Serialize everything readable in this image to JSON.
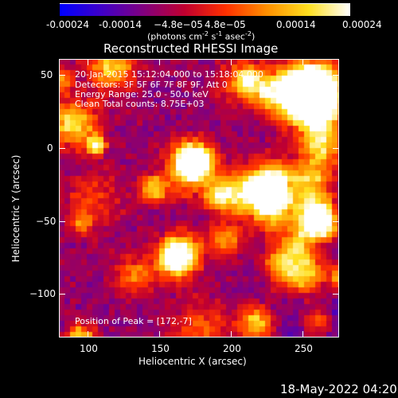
{
  "colorbar": {
    "ticks": [
      "-0.00024",
      "-0.00014",
      "−4.8e−05",
      "4.8e−05",
      "0.00014",
      "0.00024"
    ],
    "unit_prefix": "(photons cm",
    "unit_sup1": "-2",
    "unit_mid1": " s",
    "unit_sup2": "-1",
    "unit_mid2": " asec",
    "unit_sup3": "-2",
    "unit_suffix": ")",
    "colors": [
      "#0000ff",
      "#4000c8",
      "#800080",
      "#c00030",
      "#ff3000",
      "#ff9000",
      "#ffe020",
      "#ffffff"
    ]
  },
  "plot": {
    "title": "Reconstructed RHESSI Image",
    "info_lines": [
      "20-Jan-2015 15:12:04.000 to 15:18:04.000",
      "Detectors: 3F 5F 6F 7F 8F 9F, Att 0",
      "Energy Range: 25.0 - 50.0 keV",
      "Clean   Total counts: 8.75E+03"
    ],
    "peak_text": "Position of Peak = [172,-7]",
    "xlabel": "Heliocentric X (arcsec)",
    "ylabel": "Heliocentric Y (arcsec)",
    "xticks": [
      "100",
      "150",
      "200",
      "250"
    ],
    "yticks": [
      "50",
      "0",
      "−50",
      "−100"
    ],
    "x_range": [
      80,
      275
    ],
    "y_range": [
      -130,
      65
    ],
    "peak_position": [
      172,
      -7
    ],
    "colormap": "red-temperature with blue negatives"
  },
  "footer": {
    "date": "18-May-2022 04:20"
  }
}
